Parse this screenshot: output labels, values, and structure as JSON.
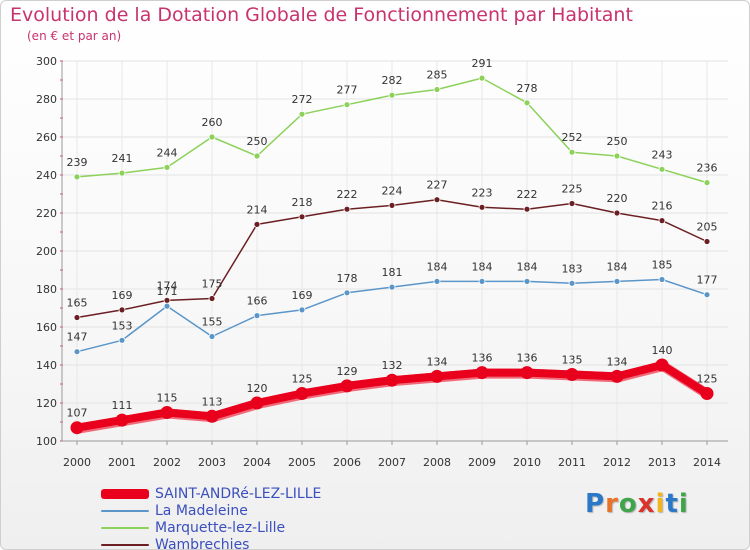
{
  "title": "Evolution de la Dotation Globale de Fonctionnement par Habitant",
  "subtitle": "(en € et par an)",
  "logo": {
    "text": "Proxiti",
    "colors": [
      "#2b78c8",
      "#e8722a",
      "#3fa44c",
      "#d9342c",
      "#f0b41e",
      "#2b78c8",
      "#3fa44c"
    ]
  },
  "chart_data": {
    "type": "line",
    "x": [
      "2000",
      "2001",
      "2002",
      "2003",
      "2004",
      "2005",
      "2006",
      "2007",
      "2008",
      "2009",
      "2010",
      "2011",
      "2012",
      "2013",
      "2014"
    ],
    "ylim": [
      100,
      300
    ],
    "yticks": [
      100,
      120,
      140,
      160,
      180,
      200,
      220,
      240,
      260,
      280,
      300
    ],
    "grid": true,
    "legend_position": "bottom-left",
    "series": [
      {
        "name": "SAINT-ANDRé-LEZ-LILLE",
        "color": "#e8001c",
        "values": [
          107,
          111,
          115,
          113,
          120,
          125,
          129,
          132,
          134,
          136,
          136,
          135,
          134,
          140,
          125
        ]
      },
      {
        "name": "La Madeleine",
        "color": "#5b96c9",
        "values": [
          147,
          153,
          171,
          155,
          166,
          169,
          178,
          181,
          184,
          184,
          184,
          183,
          184,
          185,
          177
        ],
        "labels": [
          "147",
          "153",
          "171",
          "155",
          "166",
          "169",
          "178",
          "181",
          "184",
          "184",
          "184",
          "183",
          "184",
          "185",
          "177"
        ]
      },
      {
        "name": "Marquette-lez-Lille",
        "color": "#8cd15a",
        "values": [
          239,
          241,
          244,
          260,
          250,
          272,
          277,
          282,
          285,
          291,
          278,
          252,
          250,
          243,
          236
        ]
      },
      {
        "name": "Wambrechies",
        "color": "#6b1f23",
        "values": [
          165,
          169,
          174,
          175,
          214,
          218,
          222,
          224,
          227,
          223,
          222,
          225,
          220,
          216,
          205
        ]
      }
    ]
  }
}
